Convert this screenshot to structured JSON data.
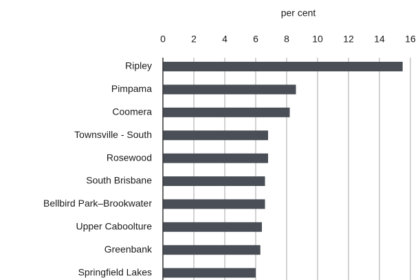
{
  "chart_data": {
    "type": "bar",
    "orientation": "horizontal",
    "x_label": "per cent",
    "categories": [
      "Ripley",
      "Pimpama",
      "Coomera",
      "Townsville - South",
      "Rosewood",
      "South Brisbane",
      "Bellbird Park–Brookwater",
      "Upper Caboolture",
      "Greenbank",
      "Springfield Lakes"
    ],
    "values": [
      15.5,
      8.6,
      8.2,
      6.8,
      6.8,
      6.6,
      6.6,
      6.4,
      6.3,
      6.0
    ],
    "color": "#4a4f57",
    "xlim": [
      0,
      16
    ],
    "xticks": [
      0,
      2,
      4,
      6,
      8,
      10,
      12,
      14,
      16
    ],
    "grid": true
  }
}
